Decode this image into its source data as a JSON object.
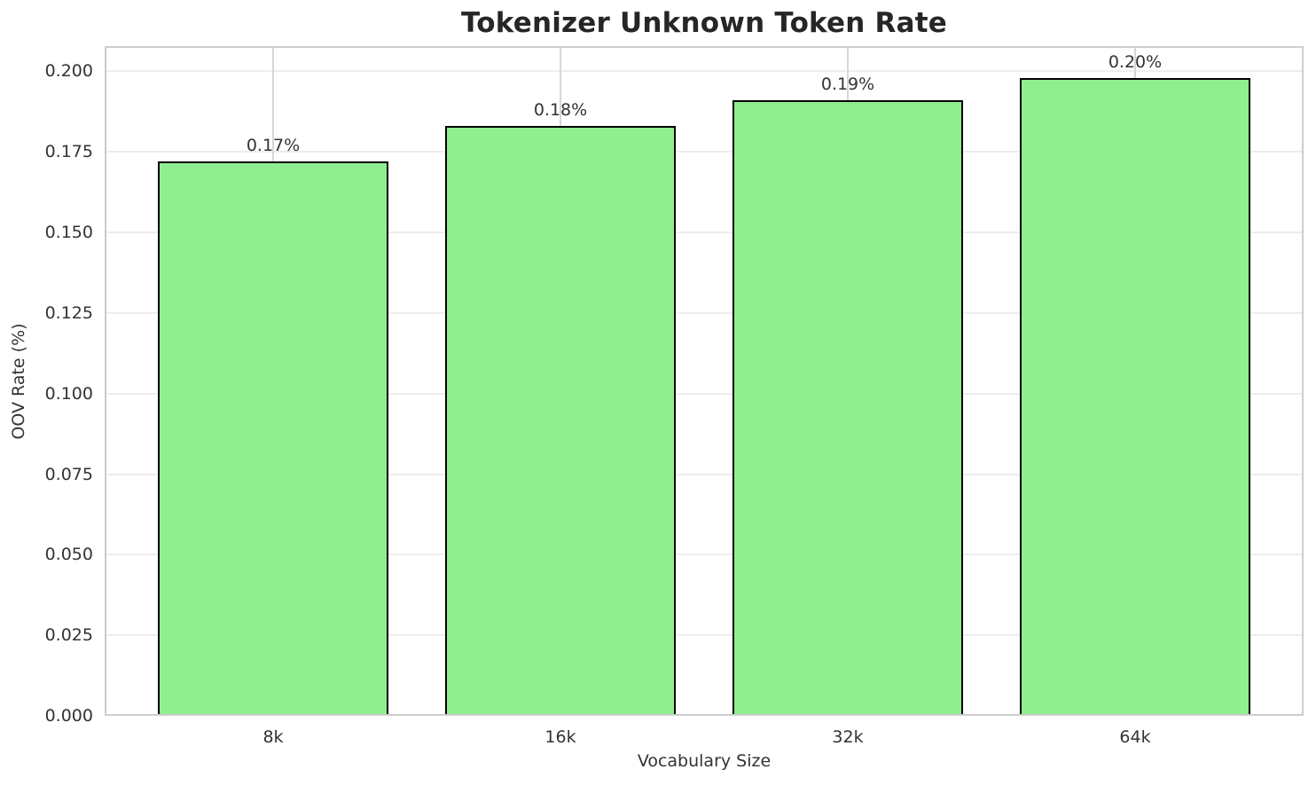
{
  "chart_data": {
    "type": "bar",
    "title": "Tokenizer Unknown Token Rate",
    "xlabel": "Vocabulary Size",
    "ylabel": "OOV Rate (%)",
    "categories": [
      "8k",
      "16k",
      "32k",
      "64k"
    ],
    "values": [
      0.172,
      0.183,
      0.191,
      0.198
    ],
    "bar_labels": [
      "0.17%",
      "0.18%",
      "0.19%",
      "0.20%"
    ],
    "yticks": [
      0,
      0.025,
      0.05,
      0.075,
      0.1,
      0.125,
      0.15,
      0.175,
      0.2
    ],
    "ytick_labels": [
      "0.000",
      "0.025",
      "0.050",
      "0.075",
      "0.100",
      "0.125",
      "0.150",
      "0.175",
      "0.200"
    ],
    "ylim": [
      0,
      0.2078
    ],
    "grid": true,
    "legend": "none",
    "colors": {
      "bar_fill": "#90EE90",
      "bar_edge": "#000000",
      "grid_horizontal": "#ededed",
      "grid_vertical": "#d6d6d6",
      "spine": "#cdcdcd",
      "text": "#333333",
      "title_text": "#262626",
      "background": "#ffffff"
    }
  }
}
